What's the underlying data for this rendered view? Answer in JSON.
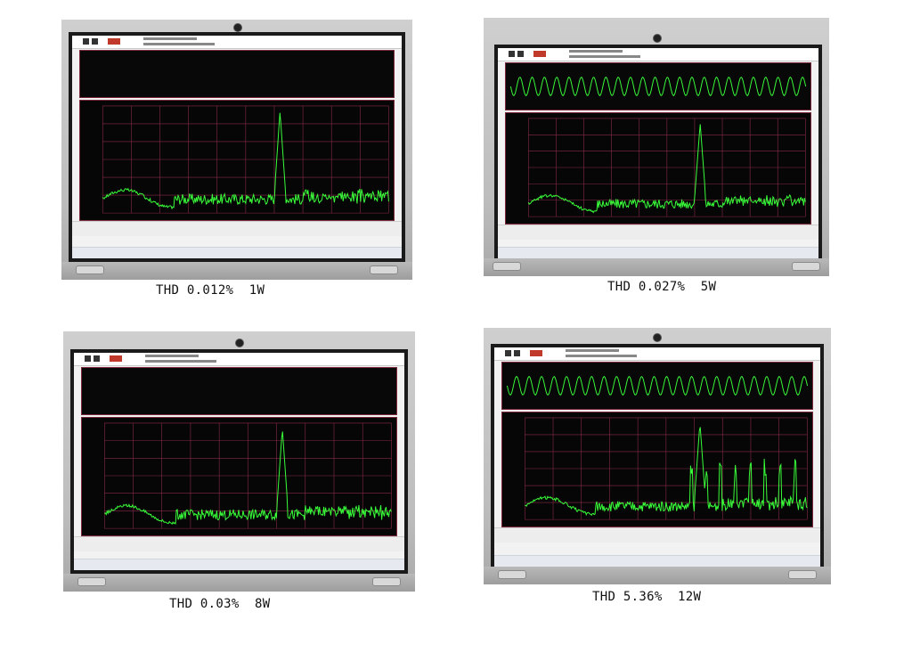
{
  "panels": [
    {
      "caption": "THD 0.012%  1W"
    },
    {
      "caption": "THD 0.027%  5W"
    },
    {
      "caption": "THD 0.03%  8W"
    },
    {
      "caption": "THD 5.36%  12W"
    }
  ],
  "colors": {
    "trace": "#39ff3a",
    "grid": "#8a2a4a",
    "scope_bg": "#080808",
    "laptop_body": "#c4c4c4"
  }
}
